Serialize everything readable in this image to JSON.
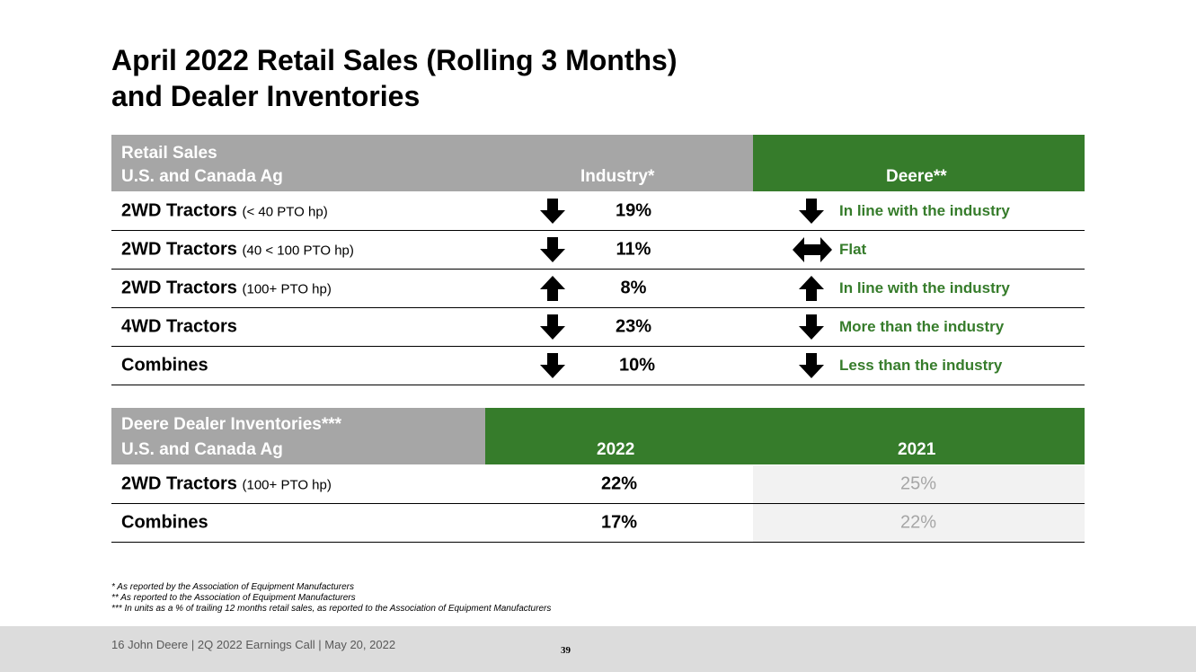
{
  "title": {
    "line1": "April 2022 Retail Sales (Rolling 3 Months)",
    "line2": "and Dealer Inventories"
  },
  "retail_table": {
    "header": {
      "label_line1": "Retail Sales",
      "label_line2": "U.S. and Canada Ag",
      "industry": "Industry*",
      "deere": "Deere**"
    },
    "rows": [
      {
        "label": "2WD Tractors",
        "sub": "(< 40 PTO hp)",
        "industry_dir": "down",
        "industry_value": "19%",
        "deere_dir": "down",
        "deere_text": "In line with the industry"
      },
      {
        "label": "2WD Tractors",
        "sub": "(40 < 100 PTO hp)",
        "industry_dir": "down",
        "industry_value": "11%",
        "deere_dir": "flat",
        "deere_text": "Flat"
      },
      {
        "label": "2WD Tractors",
        "sub": "(100+ PTO hp)",
        "industry_dir": "up",
        "industry_value": "8%",
        "deere_dir": "up",
        "deere_text": "In line with the industry"
      },
      {
        "label": "4WD Tractors",
        "sub": "",
        "industry_dir": "down",
        "industry_value": "23%",
        "deere_dir": "down",
        "deere_text": "More than the industry"
      },
      {
        "label": "Combines",
        "sub": "",
        "industry_dir": "down",
        "industry_value": "10%",
        "deere_dir": "down",
        "deere_text": "Less than the industry"
      }
    ]
  },
  "inventory_table": {
    "header": {
      "label_line1": "Deere Dealer Inventories***",
      "label_line2": "U.S. and Canada Ag",
      "year1": "2022",
      "year2": "2021"
    },
    "rows": [
      {
        "label": "2WD Tractors",
        "sub": "(100+ PTO hp)",
        "val_2022": "22%",
        "val_2021": "25%"
      },
      {
        "label": "Combines",
        "sub": "",
        "val_2022": "17%",
        "val_2021": "22%"
      }
    ]
  },
  "footnotes": [
    "* As reported by the Association of Equipment Manufacturers",
    "** As reported to the Association of Equipment Manufacturers",
    "*** In units as a % of trailing 12 months retail sales, as reported to the Association of Equipment Manufacturers"
  ],
  "footer": {
    "text": "16   John Deere | 2Q 2022 Earnings Call | May 20, 2022",
    "page_number": "39"
  },
  "colors": {
    "green": "#367c2b",
    "gray_header": "#a6a6a6",
    "footer_bg": "#dcdcdc"
  }
}
